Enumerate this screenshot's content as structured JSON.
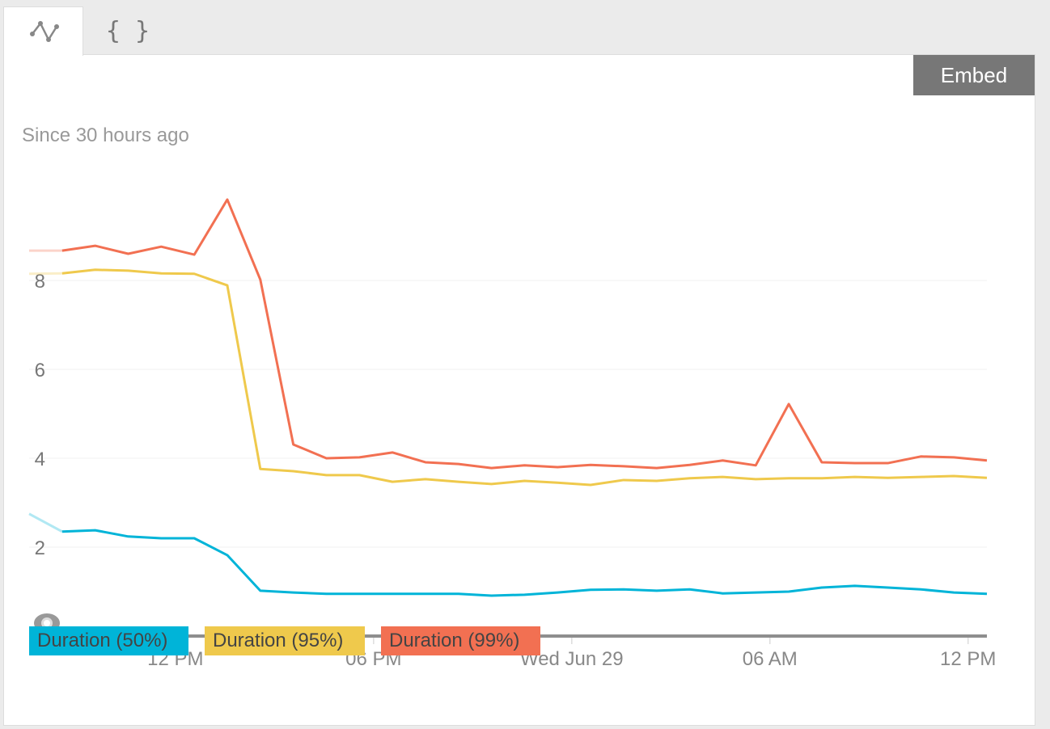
{
  "tabs": [
    {
      "icon": "line-chart-icon"
    },
    {
      "label": "{ }",
      "icon": "json-braces-icon"
    }
  ],
  "embed_label": "Embed",
  "since_label": "Since 30 hours ago",
  "colors": {
    "p50": "#00b4d8",
    "p95": "#efc94c",
    "p99": "#f27052",
    "axis": "#8e8e8e",
    "grid": "#f0f0f0"
  },
  "chart_data": {
    "type": "line",
    "title": "",
    "subtitle": "Since 30 hours ago",
    "xlabel": "",
    "ylabel": "",
    "x": [
      0,
      1,
      2,
      3,
      4,
      5,
      6,
      7,
      8,
      9,
      10,
      11,
      12,
      13,
      14,
      15,
      16,
      17,
      18,
      19,
      20,
      21,
      22,
      23,
      24,
      25,
      26,
      27,
      28,
      29
    ],
    "x_unit": "hours since start (~08:00 Jun 28)",
    "xlim": [
      0,
      29
    ],
    "ylim": [
      0,
      10
    ],
    "yticks": [
      2,
      4,
      6,
      8
    ],
    "xticks": [
      {
        "at": 4.43,
        "label": "12 PM"
      },
      {
        "at": 10.43,
        "label": "06 PM"
      },
      {
        "at": 16.43,
        "label": "Wed Jun 29"
      },
      {
        "at": 22.43,
        "label": "06 AM"
      },
      {
        "at": 28.43,
        "label": "12 PM"
      }
    ],
    "grid": true,
    "legend_position": "bottom-left",
    "series": [
      {
        "name": "Duration (50%)",
        "key": "p50",
        "values": [
          2.75,
          2.35,
          2.38,
          2.24,
          2.2,
          2.2,
          1.82,
          1.02,
          0.98,
          0.95,
          0.95,
          0.95,
          0.95,
          0.95,
          0.91,
          0.93,
          0.98,
          1.04,
          1.05,
          1.02,
          1.05,
          0.96,
          0.98,
          1.0,
          1.09,
          1.13,
          1.09,
          1.05,
          0.98,
          0.95
        ]
      },
      {
        "name": "Duration (95%)",
        "key": "p95",
        "values": [
          8.15,
          8.16,
          8.24,
          8.22,
          8.16,
          8.15,
          7.89,
          3.76,
          3.71,
          3.62,
          3.62,
          3.47,
          3.53,
          3.47,
          3.42,
          3.49,
          3.45,
          3.4,
          3.51,
          3.49,
          3.55,
          3.58,
          3.53,
          3.55,
          3.55,
          3.58,
          3.56,
          3.58,
          3.6,
          3.56
        ]
      },
      {
        "name": "Duration (99%)",
        "key": "p99",
        "values": [
          8.67,
          8.67,
          8.78,
          8.6,
          8.76,
          8.58,
          9.82,
          8.02,
          4.31,
          4.0,
          4.02,
          4.13,
          3.91,
          3.87,
          3.78,
          3.84,
          3.8,
          3.85,
          3.82,
          3.78,
          3.85,
          3.95,
          3.84,
          5.22,
          3.91,
          3.89,
          3.89,
          4.04,
          4.02,
          3.95
        ]
      }
    ]
  }
}
